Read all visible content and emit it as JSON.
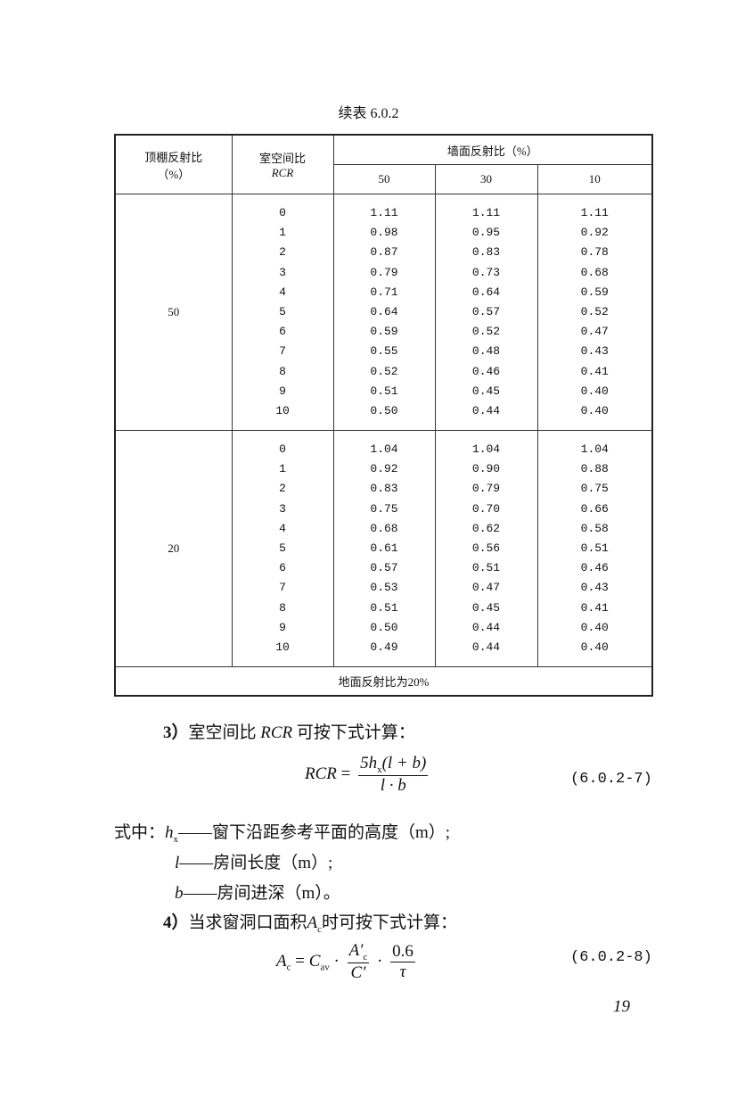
{
  "caption": "续表 6.0.2",
  "table": {
    "header": {
      "ceiling_label": "顶棚反射比",
      "ceiling_unit": "（%）",
      "rcr_label": "室空间比",
      "rcr_symbol": "RCR",
      "wall_label": "墙面反射比（%）",
      "wall_columns": [
        "50",
        "30",
        "10"
      ]
    },
    "groups": [
      {
        "ceiling": "50",
        "rcr": [
          "0",
          "1",
          "2",
          "3",
          "4",
          "5",
          "6",
          "7",
          "8",
          "9",
          "10"
        ],
        "columns": [
          [
            "1.11",
            "0.98",
            "0.87",
            "0.79",
            "0.71",
            "0.64",
            "0.59",
            "0.55",
            "0.52",
            "0.51",
            "0.50"
          ],
          [
            "1.11",
            "0.95",
            "0.83",
            "0.73",
            "0.64",
            "0.57",
            "0.52",
            "0.48",
            "0.46",
            "0.45",
            "0.44"
          ],
          [
            "1.11",
            "0.92",
            "0.78",
            "0.68",
            "0.59",
            "0.52",
            "0.47",
            "0.43",
            "0.41",
            "0.40",
            "0.40"
          ]
        ]
      },
      {
        "ceiling": "20",
        "rcr": [
          "0",
          "1",
          "2",
          "3",
          "4",
          "5",
          "6",
          "7",
          "8",
          "9",
          "10"
        ],
        "columns": [
          [
            "1.04",
            "0.92",
            "0.83",
            "0.75",
            "0.68",
            "0.61",
            "0.57",
            "0.53",
            "0.51",
            "0.50",
            "0.49"
          ],
          [
            "1.04",
            "0.90",
            "0.79",
            "0.70",
            "0.62",
            "0.56",
            "0.51",
            "0.47",
            "0.45",
            "0.44",
            "0.44"
          ],
          [
            "1.04",
            "0.88",
            "0.75",
            "0.66",
            "0.58",
            "0.51",
            "0.46",
            "0.43",
            "0.41",
            "0.40",
            "0.40"
          ]
        ]
      }
    ],
    "footer": "地面反射比为20%"
  },
  "text": {
    "item3_num": "3）",
    "item3_a": "室空间比 ",
    "item3_rcr": "RCR",
    "item3_b": " 可按下式计算：",
    "eq7": {
      "lhs": "RCR",
      "eq": " = ",
      "num": "5h",
      "num_sub": "x",
      "num_rest": "(l + b)",
      "den": "l · b",
      "number": "(6.0.2-7)"
    },
    "where": "式中：",
    "defs": [
      {
        "sym": "h",
        "sub": "x",
        "text": "——窗下沿距参考平面的高度（m）;"
      },
      {
        "sym": "l",
        "sub": "",
        "text": "——房间长度（m）;"
      },
      {
        "sym": "b",
        "sub": "",
        "text": "——房间进深（m）。"
      }
    ],
    "item4_num": "4）",
    "item4_a": "当求窗洞口面积",
    "item4_sym": "A",
    "item4_sub": "c",
    "item4_b": "时可按下式计算：",
    "eq8": {
      "lhs": "A",
      "lhs_sub": "c",
      "eq": " = ",
      "c": "C",
      "c_sub": "av",
      "dot": " · ",
      "num1": "A′",
      "num1_sub": "c",
      "den1": "C′",
      "num2": "0.6",
      "den2": "τ",
      "number": "(6.0.2-8)"
    },
    "page_number": "19"
  }
}
